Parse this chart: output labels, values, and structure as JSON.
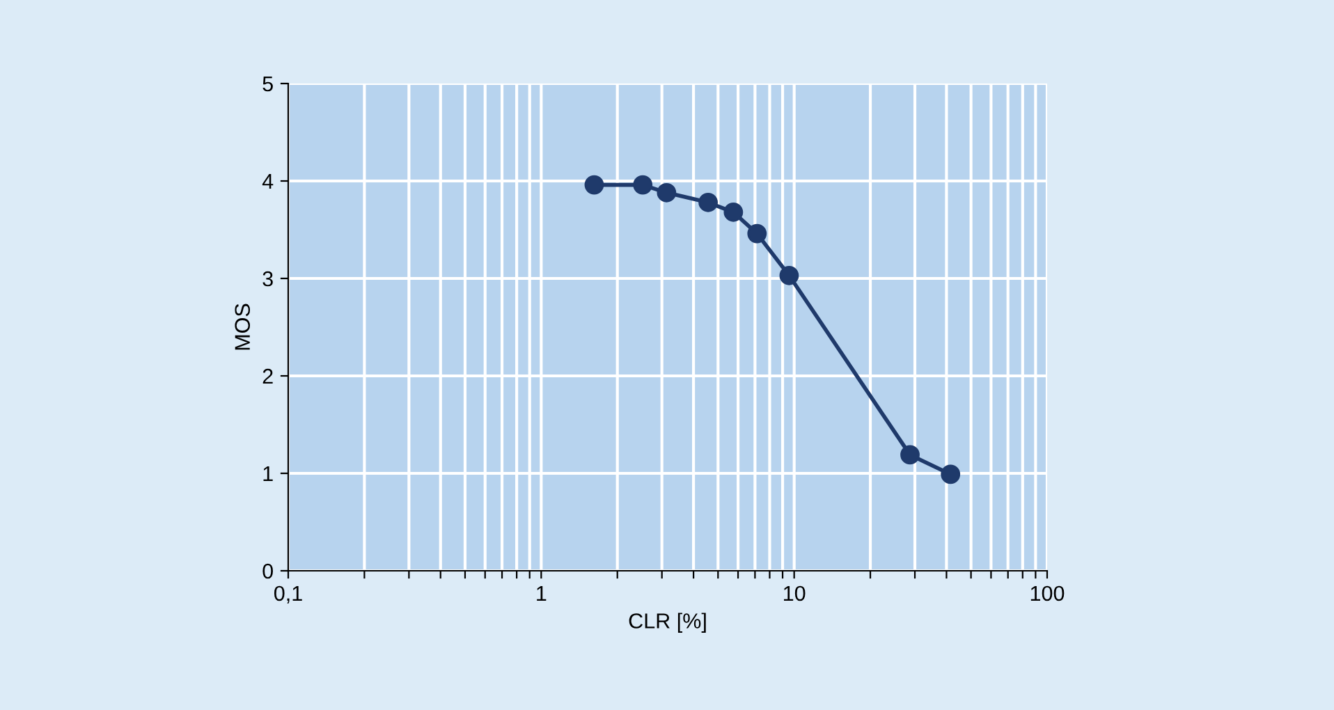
{
  "chart_data": {
    "type": "line",
    "xlabel": "CLR [%]",
    "ylabel": "MOS",
    "log": "x",
    "grid": true,
    "marker": "circle",
    "line_style": "solid",
    "x": [
      1.62,
      2.52,
      3.13,
      4.57,
      5.75,
      7.13,
      9.55,
      28.7,
      41.5
    ],
    "series": [
      {
        "color": "#1f3a6b",
        "values": [
          3.96,
          3.96,
          3.88,
          3.78,
          3.68,
          3.46,
          3.03,
          1.19,
          0.99
        ]
      }
    ],
    "xlim": [
      0.1,
      100
    ],
    "ylim": [
      0,
      5
    ],
    "xticks": [
      {
        "value": 0.1,
        "label": "0,1"
      },
      {
        "value": 0.2,
        "label": null
      },
      {
        "value": 0.3,
        "label": null
      },
      {
        "value": 0.4,
        "label": null
      },
      {
        "value": 0.5,
        "label": null
      },
      {
        "value": 0.6,
        "label": null
      },
      {
        "value": 0.7,
        "label": null
      },
      {
        "value": 0.8,
        "label": null
      },
      {
        "value": 0.9,
        "label": null
      },
      1,
      {
        "value": 2,
        "label": null
      },
      {
        "value": 3,
        "label": null
      },
      {
        "value": 4,
        "label": null
      },
      {
        "value": 5,
        "label": null
      },
      {
        "value": 6,
        "label": null
      },
      {
        "value": 7,
        "label": null
      },
      {
        "value": 8,
        "label": null
      },
      {
        "value": 9,
        "label": null
      },
      10,
      {
        "value": 20,
        "label": null
      },
      {
        "value": 30,
        "label": null
      },
      {
        "value": 40,
        "label": null
      },
      {
        "value": 50,
        "label": null
      },
      {
        "value": 60,
        "label": null
      },
      {
        "value": 70,
        "label": null
      },
      {
        "value": 80,
        "label": null
      },
      {
        "value": 90,
        "label": null
      },
      100
    ],
    "yticks": [
      0,
      1,
      2,
      3,
      4,
      5
    ]
  }
}
